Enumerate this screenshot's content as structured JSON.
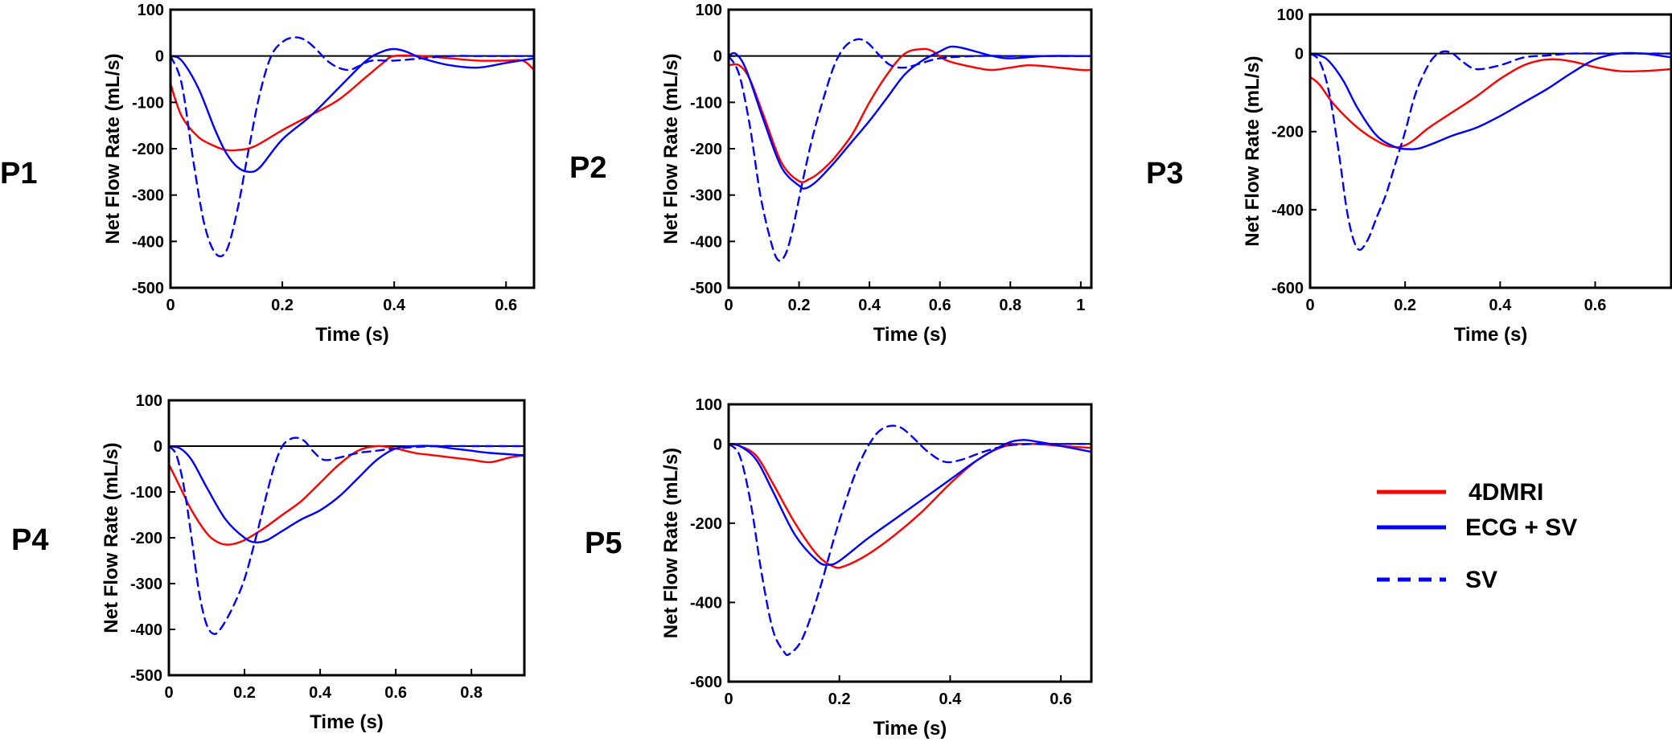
{
  "legend": [
    {
      "name": "4DMRI",
      "color": "#ff0000",
      "dash": "solid"
    },
    {
      "name": "ECG + SV",
      "color": "#0000ff",
      "dash": "solid"
    },
    {
      "name": "SV",
      "color": "#0000ff",
      "dash": "dashed"
    }
  ],
  "chart_data": [
    {
      "type": "line",
      "panel": "P1",
      "xlabel": "Time (s)",
      "ylabel": "Net Flow Rate (mL/s)",
      "xlim": [
        0,
        0.65
      ],
      "ylim": [
        -500,
        100
      ],
      "xticks": [
        0,
        0.2,
        0.4,
        0.6
      ],
      "xtick_labels": [
        "0",
        "0.2",
        "0.4",
        "0.6"
      ],
      "yticks": [
        100,
        0,
        -100,
        -200,
        -300,
        -400,
        -500
      ],
      "ytick_labels": [
        "100",
        "0",
        "-100",
        "-200",
        "-300",
        "-400",
        "-500"
      ],
      "series": [
        {
          "name": "4DMRI",
          "x": [
            0,
            0.02,
            0.05,
            0.08,
            0.1,
            0.12,
            0.15,
            0.2,
            0.25,
            0.3,
            0.35,
            0.38,
            0.4,
            0.45,
            0.5,
            0.55,
            0.6,
            0.63,
            0.65
          ],
          "y": [
            -60,
            -130,
            -175,
            -195,
            -203,
            -203,
            -195,
            -160,
            -128,
            -95,
            -45,
            -15,
            0,
            0,
            -5,
            -10,
            -10,
            -10,
            -30
          ]
        },
        {
          "name": "ECG + SV",
          "x": [
            0,
            0.02,
            0.05,
            0.08,
            0.1,
            0.12,
            0.14,
            0.16,
            0.2,
            0.25,
            0.3,
            0.35,
            0.38,
            0.4,
            0.42,
            0.45,
            0.5,
            0.55,
            0.6,
            0.65
          ],
          "y": [
            0,
            -10,
            -70,
            -160,
            -210,
            -240,
            -250,
            -240,
            -180,
            -130,
            -70,
            -10,
            10,
            15,
            10,
            -5,
            -20,
            -25,
            -15,
            -5
          ]
        },
        {
          "name": "SV",
          "x": [
            0,
            0.02,
            0.04,
            0.06,
            0.08,
            0.1,
            0.12,
            0.14,
            0.16,
            0.18,
            0.2,
            0.22,
            0.24,
            0.26,
            0.28,
            0.3,
            0.32,
            0.34,
            0.36,
            0.4,
            0.45,
            0.5,
            0.55,
            0.6,
            0.65
          ],
          "y": [
            0,
            -60,
            -220,
            -360,
            -425,
            -420,
            -330,
            -200,
            -80,
            0,
            30,
            40,
            35,
            15,
            -10,
            -25,
            -30,
            -20,
            -10,
            -10,
            -5,
            0,
            0,
            0,
            0
          ]
        }
      ]
    },
    {
      "type": "line",
      "panel": "P2",
      "xlabel": "Time (s)",
      "ylabel": "Net Flow Rate (mL/s)",
      "xlim": [
        0,
        1.03
      ],
      "ylim": [
        -500,
        100
      ],
      "xticks": [
        0,
        0.2,
        0.4,
        0.6,
        0.8,
        1
      ],
      "xtick_labels": [
        "0",
        "0.2",
        "0.4",
        "0.6",
        "0.8",
        "1"
      ],
      "yticks": [
        100,
        0,
        -100,
        -200,
        -300,
        -400,
        -500
      ],
      "ytick_labels": [
        "100",
        "0",
        "-100",
        "-200",
        "-300",
        "-400",
        "-500"
      ],
      "series": [
        {
          "name": "4DMRI",
          "x": [
            0,
            0.03,
            0.06,
            0.1,
            0.15,
            0.2,
            0.23,
            0.26,
            0.3,
            0.35,
            0.4,
            0.45,
            0.5,
            0.55,
            0.58,
            0.62,
            0.7,
            0.75,
            0.8,
            0.85,
            0.9,
            1.0,
            1.03
          ],
          "y": [
            -20,
            -20,
            -50,
            -130,
            -230,
            -270,
            -265,
            -250,
            -220,
            -170,
            -100,
            -40,
            5,
            15,
            10,
            -10,
            -25,
            -30,
            -25,
            -20,
            -22,
            -30,
            -30
          ]
        },
        {
          "name": "ECG + SV",
          "x": [
            0,
            0.02,
            0.05,
            0.1,
            0.15,
            0.2,
            0.22,
            0.25,
            0.3,
            0.35,
            0.4,
            0.45,
            0.5,
            0.55,
            0.6,
            0.63,
            0.66,
            0.7,
            0.75,
            0.8,
            0.9,
            1.0,
            1.03
          ],
          "y": [
            0,
            5,
            -30,
            -140,
            -240,
            -280,
            -285,
            -270,
            -230,
            -185,
            -140,
            -90,
            -40,
            -10,
            10,
            20,
            18,
            10,
            0,
            -5,
            0,
            0,
            0
          ]
        },
        {
          "name": "SV",
          "x": [
            0,
            0.03,
            0.06,
            0.09,
            0.12,
            0.14,
            0.16,
            0.18,
            0.21,
            0.24,
            0.27,
            0.3,
            0.33,
            0.36,
            0.38,
            0.4,
            0.43,
            0.46,
            0.5,
            0.55,
            0.6,
            0.7,
            0.8,
            0.9,
            1.03
          ],
          "y": [
            0,
            -40,
            -150,
            -300,
            -400,
            -440,
            -430,
            -380,
            -270,
            -170,
            -90,
            -20,
            20,
            35,
            35,
            25,
            0,
            -20,
            -25,
            -15,
            -5,
            0,
            0,
            0,
            0
          ]
        }
      ]
    },
    {
      "type": "line",
      "panel": "P3",
      "xlabel": "Time (s)",
      "ylabel": "Net Flow Rate (mL/s)",
      "xlim": [
        0,
        0.76
      ],
      "ylim": [
        -600,
        100
      ],
      "xticks": [
        0,
        0.2,
        0.4,
        0.6
      ],
      "xtick_labels": [
        "0",
        "0.2",
        "0.4",
        "0.6"
      ],
      "yticks": [
        100,
        0,
        -200,
        -400,
        -600
      ],
      "ytick_labels": [
        "100",
        "0",
        "-200",
        "-400",
        "-600"
      ],
      "series": [
        {
          "name": "4DMRI",
          "x": [
            0,
            0.02,
            0.05,
            0.1,
            0.15,
            0.18,
            0.2,
            0.22,
            0.25,
            0.3,
            0.35,
            0.4,
            0.45,
            0.5,
            0.55,
            0.6,
            0.65,
            0.7,
            0.76
          ],
          "y": [
            -60,
            -80,
            -130,
            -190,
            -230,
            -240,
            -235,
            -220,
            -190,
            -150,
            -110,
            -65,
            -30,
            -15,
            -20,
            -35,
            -45,
            -45,
            -40
          ]
        },
        {
          "name": "ECG + SV",
          "x": [
            0,
            0.02,
            0.04,
            0.07,
            0.1,
            0.14,
            0.18,
            0.21,
            0.23,
            0.26,
            0.3,
            0.35,
            0.4,
            0.45,
            0.5,
            0.55,
            0.6,
            0.65,
            0.7,
            0.76
          ],
          "y": [
            0,
            -5,
            -20,
            -70,
            -140,
            -210,
            -240,
            -245,
            -243,
            -230,
            -210,
            -190,
            -160,
            -125,
            -90,
            -50,
            -15,
            0,
            0,
            -10
          ]
        },
        {
          "name": "SV",
          "x": [
            0,
            0.02,
            0.04,
            0.06,
            0.08,
            0.1,
            0.12,
            0.14,
            0.16,
            0.18,
            0.2,
            0.22,
            0.24,
            0.26,
            0.28,
            0.3,
            0.32,
            0.35,
            0.4,
            0.45,
            0.5,
            0.55,
            0.6,
            0.7,
            0.76
          ],
          "y": [
            0,
            -20,
            -100,
            -250,
            -420,
            -500,
            -480,
            -420,
            -360,
            -280,
            -200,
            -110,
            -50,
            -10,
            5,
            0,
            -20,
            -40,
            -30,
            -10,
            -5,
            0,
            0,
            0,
            0
          ]
        }
      ]
    },
    {
      "type": "line",
      "panel": "P4",
      "xlabel": "Time (s)",
      "ylabel": "Net Flow Rate (mL/s)",
      "xlim": [
        0,
        0.94
      ],
      "ylim": [
        -500,
        100
      ],
      "xticks": [
        0,
        0.2,
        0.4,
        0.6,
        0.8
      ],
      "xtick_labels": [
        "0",
        "0.2",
        "0.4",
        "0.6",
        "0.8"
      ],
      "yticks": [
        100,
        0,
        -100,
        -200,
        -300,
        -400,
        -500
      ],
      "ytick_labels": [
        "100",
        "0",
        "-100",
        "-200",
        "-300",
        "-400",
        "-500"
      ],
      "series": [
        {
          "name": "4DMRI",
          "x": [
            0,
            0.03,
            0.06,
            0.1,
            0.13,
            0.16,
            0.2,
            0.25,
            0.3,
            0.35,
            0.4,
            0.45,
            0.5,
            0.55,
            0.6,
            0.65,
            0.7,
            0.75,
            0.8,
            0.85,
            0.9,
            0.94
          ],
          "y": [
            -40,
            -90,
            -140,
            -190,
            -210,
            -215,
            -205,
            -180,
            -150,
            -120,
            -80,
            -40,
            -10,
            0,
            -5,
            -15,
            -20,
            -25,
            -30,
            -35,
            -25,
            -20
          ]
        },
        {
          "name": "ECG + SV",
          "x": [
            0,
            0.03,
            0.06,
            0.1,
            0.15,
            0.2,
            0.23,
            0.26,
            0.3,
            0.35,
            0.4,
            0.45,
            0.5,
            0.55,
            0.6,
            0.65,
            0.7,
            0.75,
            0.8,
            0.85,
            0.94
          ],
          "y": [
            0,
            -5,
            -30,
            -90,
            -160,
            -200,
            -210,
            -205,
            -185,
            -160,
            -140,
            -110,
            -70,
            -30,
            -5,
            0,
            0,
            -5,
            -10,
            -15,
            -20
          ]
        },
        {
          "name": "SV",
          "x": [
            0,
            0.02,
            0.04,
            0.06,
            0.08,
            0.1,
            0.12,
            0.14,
            0.17,
            0.2,
            0.23,
            0.26,
            0.28,
            0.3,
            0.32,
            0.34,
            0.36,
            0.38,
            0.41,
            0.45,
            0.5,
            0.55,
            0.6,
            0.7,
            0.8,
            0.94
          ],
          "y": [
            0,
            -20,
            -90,
            -200,
            -320,
            -390,
            -410,
            -395,
            -350,
            -290,
            -200,
            -100,
            -40,
            0,
            15,
            18,
            10,
            -10,
            -30,
            -25,
            -15,
            -10,
            -5,
            0,
            0,
            0
          ]
        }
      ]
    },
    {
      "type": "line",
      "panel": "P5",
      "xlabel": "Time (s)",
      "ylabel": "Net Flow Rate (mL/s)",
      "xlim": [
        0,
        0.655
      ],
      "ylim": [
        -600,
        100
      ],
      "xticks": [
        0,
        0.2,
        0.4,
        0.6
      ],
      "xtick_labels": [
        "0",
        "0.2",
        "0.4",
        "0.6"
      ],
      "yticks": [
        100,
        0,
        -200,
        -400,
        -600
      ],
      "ytick_labels": [
        "100",
        "0",
        "-200",
        "-400",
        "-600"
      ],
      "series": [
        {
          "name": "4DMRI",
          "x": [
            0,
            0.02,
            0.05,
            0.08,
            0.12,
            0.16,
            0.19,
            0.21,
            0.25,
            0.3,
            0.35,
            0.4,
            0.45,
            0.5,
            0.55,
            0.6,
            0.655
          ],
          "y": [
            0,
            -5,
            -30,
            -100,
            -200,
            -280,
            -310,
            -308,
            -280,
            -230,
            -170,
            -100,
            -40,
            -5,
            0,
            -5,
            -10
          ]
        },
        {
          "name": "ECG + SV",
          "x": [
            0,
            0.02,
            0.05,
            0.08,
            0.12,
            0.16,
            0.18,
            0.2,
            0.25,
            0.3,
            0.35,
            0.4,
            0.45,
            0.5,
            0.53,
            0.56,
            0.6,
            0.655
          ],
          "y": [
            0,
            -5,
            -40,
            -120,
            -230,
            -295,
            -305,
            -295,
            -240,
            -190,
            -140,
            -90,
            -40,
            0,
            10,
            5,
            -5,
            -20
          ]
        },
        {
          "name": "SV",
          "x": [
            0,
            0.02,
            0.04,
            0.06,
            0.08,
            0.1,
            0.11,
            0.13,
            0.15,
            0.17,
            0.19,
            0.21,
            0.23,
            0.25,
            0.27,
            0.29,
            0.31,
            0.33,
            0.36,
            0.39,
            0.42,
            0.46,
            0.5,
            0.55,
            0.6,
            0.655
          ],
          "y": [
            0,
            -30,
            -150,
            -330,
            -470,
            -525,
            -530,
            -500,
            -430,
            -340,
            -240,
            -150,
            -70,
            -10,
            30,
            45,
            42,
            20,
            -20,
            -45,
            -40,
            -20,
            -5,
            0,
            0,
            0
          ]
        }
      ]
    }
  ]
}
